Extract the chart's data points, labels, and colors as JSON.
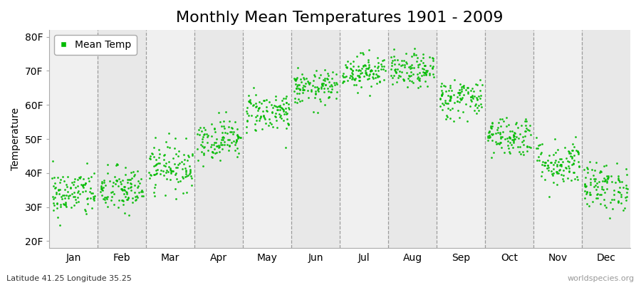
{
  "title": "Monthly Mean Temperatures 1901 - 2009",
  "ylabel": "Temperature",
  "bottom_left": "Latitude 41.25 Longitude 35.25",
  "bottom_right": "worldspecies.org",
  "legend_label": "Mean Temp",
  "dot_color": "#00bb00",
  "bg_color": "#ffffff",
  "band_colors": [
    "#f0f0f0",
    "#e8e8e8"
  ],
  "ytick_labels": [
    "20F",
    "30F",
    "40F",
    "50F",
    "60F",
    "70F",
    "80F"
  ],
  "ytick_values": [
    20,
    30,
    40,
    50,
    60,
    70,
    80
  ],
  "ylim": [
    18,
    82
  ],
  "xlim": [
    0,
    12
  ],
  "month_names": [
    "Jan",
    "Feb",
    "Mar",
    "Apr",
    "May",
    "Jun",
    "Jul",
    "Aug",
    "Sep",
    "Oct",
    "Nov",
    "Dec"
  ],
  "month_means": [
    34,
    35,
    42,
    50,
    58,
    65,
    70,
    70,
    62,
    51,
    43,
    36
  ],
  "month_stds": [
    3.5,
    3.5,
    3.5,
    3.0,
    3.0,
    2.5,
    2.5,
    2.5,
    3.0,
    3.0,
    3.5,
    3.5
  ],
  "n_years": 109,
  "seed": 42,
  "title_fontsize": 16,
  "label_fontsize": 10,
  "tick_fontsize": 10,
  "dot_size": 4
}
